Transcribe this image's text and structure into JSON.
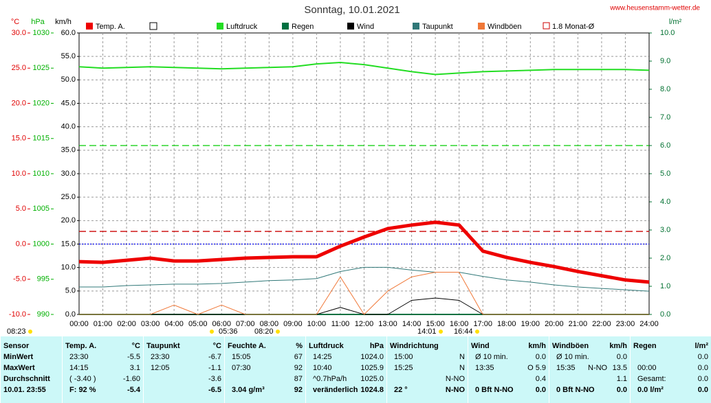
{
  "chart_data": {
    "type": "line",
    "title": "Sonntag, 10.01.2021",
    "site": "www.heusenstamm-wetter.de",
    "categories": [
      "00:00",
      "01:00",
      "02:00",
      "03:00",
      "04:00",
      "05:00",
      "06:00",
      "07:00",
      "08:00",
      "09:00",
      "10:00",
      "11:00",
      "12:00",
      "13:00",
      "14:00",
      "15:00",
      "16:00",
      "17:00",
      "18:00",
      "19:00",
      "20:00",
      "21:00",
      "22:00",
      "23:00",
      "24:00"
    ],
    "grid": true,
    "axes": [
      {
        "unit": "°C",
        "color": "#e00000",
        "lim": [
          -10,
          30
        ],
        "ticks": [
          {
            "value": 30,
            "label": "30.0"
          },
          {
            "value": 25,
            "label": "25.0"
          },
          {
            "value": 20,
            "label": "20.0"
          },
          {
            "value": 15,
            "label": "15.0"
          },
          {
            "value": 10,
            "label": "10.0"
          },
          {
            "value": 5,
            "label": "5.0"
          },
          {
            "value": 0,
            "label": "0.0"
          },
          {
            "value": -5,
            "label": "-5.0"
          },
          {
            "value": -10,
            "label": "-10.0"
          }
        ]
      },
      {
        "unit": "hPa",
        "color": "#00b000",
        "lim": [
          990,
          1030
        ],
        "ticks": [
          1030,
          1025,
          1020,
          1015,
          1010,
          1005,
          1000,
          995,
          990
        ]
      },
      {
        "unit": "km/h",
        "color": "#000000",
        "lim": [
          0,
          60
        ],
        "ticks": [
          {
            "value": 60,
            "label": "60.0"
          },
          {
            "value": 55,
            "label": "55.0"
          },
          {
            "value": 50,
            "label": "50.0"
          },
          {
            "value": 45,
            "label": "45.0"
          },
          {
            "value": 40,
            "label": "40.0"
          },
          {
            "value": 35,
            "label": "35.0"
          },
          {
            "value": 30,
            "label": "30.0"
          },
          {
            "value": 25,
            "label": "25.0"
          },
          {
            "value": 20,
            "label": "20.0"
          },
          {
            "value": 15,
            "label": "15.0"
          },
          {
            "value": 10,
            "label": "10.0"
          },
          {
            "value": 5,
            "label": "5.0"
          },
          {
            "value": 0,
            "label": "0.0"
          }
        ]
      },
      {
        "unit": "l/m²",
        "color": "#007030",
        "lim": [
          0,
          10
        ],
        "ticks": [
          {
            "value": 10,
            "label": "10.0"
          },
          {
            "value": 9,
            "label": "9.0"
          },
          {
            "value": 8,
            "label": "8.0"
          },
          {
            "value": 7,
            "label": "7.0"
          },
          {
            "value": 6,
            "label": "6.0"
          },
          {
            "value": 5,
            "label": "5.0"
          },
          {
            "value": 4,
            "label": "4.0"
          },
          {
            "value": 3,
            "label": "3.0"
          },
          {
            "value": 2,
            "label": "2.0"
          },
          {
            "value": 1,
            "label": "1.0"
          },
          {
            "value": 0,
            "label": "0.0"
          }
        ]
      }
    ],
    "series": [
      {
        "name": "Temp. A.",
        "color": "#ee0000",
        "axis": 0,
        "values": [
          -2.5,
          -2.6,
          -2.3,
          -2.0,
          -2.4,
          -2.4,
          -2.2,
          -2.0,
          -1.9,
          -1.8,
          -1.8,
          -0.3,
          1.0,
          2.2,
          2.7,
          3.1,
          2.7,
          -1.0,
          -1.9,
          -2.6,
          -3.2,
          -3.9,
          -4.5,
          -5.1,
          -5.4
        ]
      },
      {
        "name": "Luftdruck",
        "color": "#22dd22",
        "axis": 1,
        "values": [
          1025.2,
          1025.0,
          1025.1,
          1025.2,
          1025.1,
          1025.0,
          1024.9,
          1025.0,
          1025.1,
          1025.2,
          1025.6,
          1025.8,
          1025.5,
          1025.0,
          1024.5,
          1024.1,
          1024.3,
          1024.5,
          1024.6,
          1024.7,
          1024.8,
          1024.8,
          1024.8,
          1024.8,
          1024.7
        ]
      },
      {
        "name": "Regen",
        "color": "#007040",
        "axis": 3,
        "values": [
          0,
          0,
          0,
          0,
          0,
          0,
          0,
          0,
          0,
          0,
          0,
          0,
          0,
          0,
          0,
          0,
          0,
          0,
          0,
          0,
          0,
          0,
          0,
          0,
          0
        ]
      },
      {
        "name": "Wind",
        "color": "#000000",
        "axis": 2,
        "values": [
          0,
          0,
          0,
          0,
          0,
          0,
          0,
          0,
          0,
          0,
          0,
          1.5,
          0,
          0,
          3.0,
          3.5,
          3.0,
          0,
          0,
          0,
          0,
          0,
          0,
          0,
          0
        ]
      },
      {
        "name": "Taupunkt",
        "color": "#307878",
        "axis": 0,
        "values": [
          -6.1,
          -6.1,
          -5.9,
          -5.8,
          -5.7,
          -5.7,
          -5.6,
          -5.4,
          -5.2,
          -5.1,
          -4.9,
          -3.9,
          -3.3,
          -3.3,
          -3.7,
          -4.0,
          -4.0,
          -4.6,
          -5.1,
          -5.4,
          -5.8,
          -6.1,
          -6.3,
          -6.5,
          -6.7
        ]
      },
      {
        "name": "Windböen",
        "color": "#f07838",
        "axis": 2,
        "values": [
          0,
          0,
          0,
          0,
          2.0,
          0,
          2.0,
          0,
          0,
          0,
          0,
          8.0,
          0,
          5.0,
          8.0,
          9.0,
          9.0,
          0,
          0,
          0,
          0,
          0,
          0,
          0,
          0
        ]
      }
    ],
    "reference_lines": [
      {
        "name": "1.8 Monat-Ø",
        "color": "#cc0000",
        "axis": 0,
        "value": 1.8
      },
      {
        "color": "#00cc00",
        "axis": 3,
        "value": 6.0
      },
      {
        "color": "#0000ee",
        "axis": 0,
        "value": 0
      }
    ],
    "annotations": [
      "08:23",
      "05:36",
      "08:20",
      "14:01",
      "16:44"
    ]
  },
  "table": {
    "groups": [
      {
        "title": "Sensor",
        "rows": [
          [
            "MinWert"
          ],
          [
            "MaxWert"
          ],
          [
            "Durchschnitt"
          ],
          [
            "10.01. 23:55"
          ]
        ]
      },
      {
        "title": "Temp. A.",
        "unit": "°C",
        "rows": [
          [
            "23:30",
            "-5.5"
          ],
          [
            "14:15",
            "3.1"
          ],
          [
            "( -3.40 )",
            "-1.60"
          ],
          [
            "F: 92 %",
            "-5.4"
          ]
        ]
      },
      {
        "title": "Taupunkt",
        "unit": "°C",
        "rows": [
          [
            "23:30",
            "-6.7"
          ],
          [
            "12:05",
            "-1.1"
          ],
          [
            null,
            "-3.6"
          ],
          [
            null,
            "-6.5"
          ]
        ]
      },
      {
        "title": "Feuchte A.",
        "unit": "%",
        "rows": [
          [
            "15:05",
            "67"
          ],
          [
            "07:30",
            "92"
          ],
          [
            null,
            "87"
          ],
          [
            "3.04 g/m³",
            "92"
          ]
        ]
      },
      {
        "title": "Luftdruck",
        "unit": "hPa",
        "rows": [
          [
            "14:25",
            "1024.0"
          ],
          [
            "10:40",
            "1025.9"
          ],
          [
            "^0.7hPa/h",
            "1025.0"
          ],
          [
            "veränderlich",
            "1024.8"
          ]
        ]
      },
      {
        "title": "Windrichtung",
        "rows": [
          [
            "15:00",
            "N"
          ],
          [
            "15:25",
            "N"
          ],
          [
            null,
            "N-NO"
          ],
          [
            "22 °",
            "N-NO"
          ]
        ]
      },
      {
        "title": "Wind",
        "unit": "km/h",
        "rows": [
          [
            "Ø 10 min.",
            "0.0"
          ],
          [
            "13:35",
            "O 5.9"
          ],
          [
            null,
            "0.4"
          ],
          [
            "0 Bft N-NO",
            "0.0"
          ]
        ]
      },
      {
        "title": "Windböen",
        "unit": "km/h",
        "rows": [
          [
            "Ø 10 min.",
            null,
            "0.0"
          ],
          [
            "15:35",
            "N-NO",
            "13.5"
          ],
          [
            null,
            null,
            "1.1"
          ],
          [
            "0 Bft N-NO",
            null,
            "0.0"
          ]
        ]
      },
      {
        "title": "Regen",
        "unit": "l/m²",
        "rows": [
          [
            null,
            "0.0"
          ],
          [
            "00:00",
            "0.0"
          ],
          [
            "Gesamt:",
            "0.0"
          ],
          [
            "0.0 l/m²",
            "0.0"
          ]
        ]
      }
    ]
  }
}
